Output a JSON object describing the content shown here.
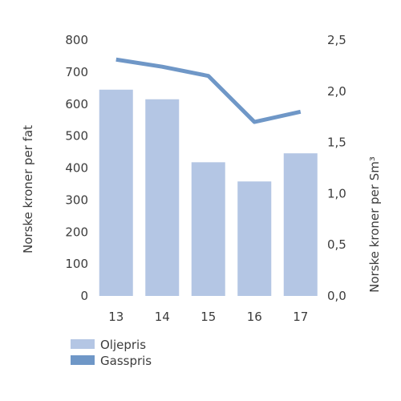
{
  "chart_data": {
    "type": "bar",
    "categories": [
      "13",
      "14",
      "15",
      "16",
      "17"
    ],
    "series": [
      {
        "name": "Oljepris",
        "type": "bar",
        "axis": "left",
        "values": [
          645,
          615,
          418,
          358,
          446
        ],
        "color": "#b4c6e4"
      },
      {
        "name": "Gasspris",
        "type": "line",
        "axis": "right",
        "values": [
          2.31,
          2.24,
          2.15,
          1.7,
          1.8
        ],
        "color": "#6f97c7"
      }
    ],
    "ylabel": "Norske kroner per fat",
    "y2label": "Norske kroner per Sm³",
    "ylim": [
      0,
      800
    ],
    "y2lim": [
      0,
      2.5
    ],
    "yticks": [
      "0",
      "100",
      "200",
      "300",
      "400",
      "500",
      "600",
      "700",
      "800"
    ],
    "y2ticks": [
      "0,0",
      "0,5",
      "1,0",
      "1,5",
      "2,0",
      "2,5"
    ],
    "grid": false,
    "legend_position": "bottom-left"
  }
}
